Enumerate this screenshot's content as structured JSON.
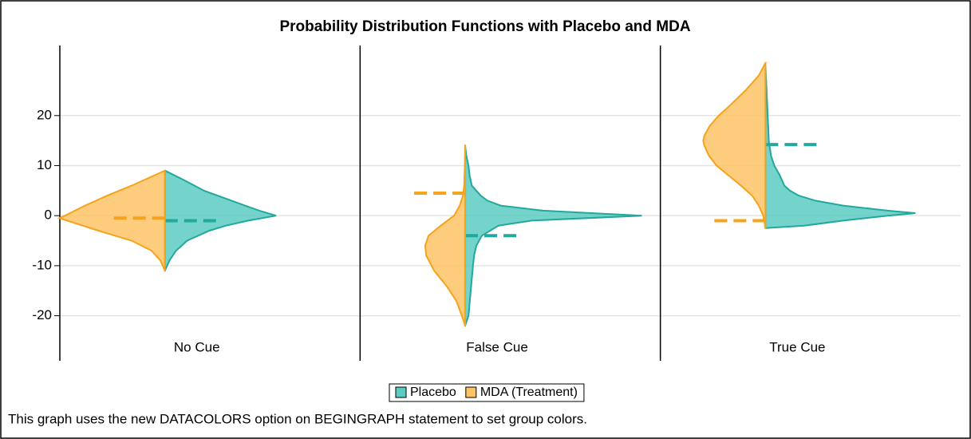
{
  "chart_data": {
    "type": "violin",
    "title": "Probability Distribution Functions with Placebo and MDA",
    "footnote": "This graph uses the new DATACOLORS option on BEGINGRAPH statement to set group colors.",
    "categories": [
      "No Cue",
      "False Cue",
      "True Cue"
    ],
    "ylim": [
      -29,
      34
    ],
    "yticks": [
      -20,
      -10,
      0,
      10,
      20
    ],
    "grid": true,
    "series": [
      {
        "name": "Placebo",
        "color": "#5ccbc1",
        "groups": [
          {
            "y": [
              -11,
              -9,
              -7,
              -5,
              -3,
              -2,
              -1,
              0,
              1,
              2,
              3,
              5,
              7,
              9
            ],
            "density": [
              0,
              0.04,
              0.1,
              0.2,
              0.4,
              0.55,
              0.75,
              1.0,
              0.85,
              0.72,
              0.6,
              0.35,
              0.18,
              0
            ],
            "mean": -1
          },
          {
            "y": [
              -22,
              -20,
              -15,
              -10,
              -8,
              -6,
              -4,
              -2,
              -1,
              0,
              1,
              2,
              3,
              4,
              6,
              8,
              10,
              12,
              14
            ],
            "density": [
              0,
              0.03,
              0.05,
              0.07,
              0.08,
              0.1,
              0.15,
              0.3,
              0.6,
              1.59,
              0.7,
              0.32,
              0.2,
              0.14,
              0.06,
              0.04,
              0.03,
              0.01,
              0
            ],
            "mean": -4
          },
          {
            "y": [
              -2.5,
              -2,
              -1,
              0,
              0.5,
              1,
              2,
              3,
              4,
              5,
              6,
              8,
              10,
              12,
              15,
              20,
              25,
              30
            ],
            "density": [
              0,
              0.35,
              0.7,
              1.1,
              1.35,
              1.1,
              0.7,
              0.45,
              0.3,
              0.22,
              0.17,
              0.13,
              0.08,
              0.05,
              0.03,
              0.02,
              0.01,
              0
            ],
            "mean": 14.2
          }
        ]
      },
      {
        "name": "MDA (Treatment)",
        "color": "#fdc365",
        "groups": [
          {
            "y": [
              -11,
              -9,
              -7,
              -5,
              -3,
              -1,
              -0.5,
              0,
              2,
              4,
              6,
              8,
              9
            ],
            "density": [
              0,
              0.04,
              0.12,
              0.3,
              0.6,
              0.88,
              0.95,
              0.9,
              0.72,
              0.52,
              0.3,
              0.1,
              0
            ],
            "mean": -0.5
          },
          {
            "y": [
              -22,
              -20,
              -17,
              -14,
              -11,
              -8,
              -6,
              -4,
              -2,
              0,
              2,
              4,
              6,
              9,
              12,
              14
            ],
            "density": [
              0,
              0.03,
              0.08,
              0.17,
              0.28,
              0.35,
              0.36,
              0.33,
              0.22,
              0.1,
              0.05,
              0.02,
              0.01,
              0.005,
              0.002,
              0
            ],
            "mean": 4.5
          },
          {
            "y": [
              -2.5,
              0,
              2,
              4,
              6,
              8,
              10,
              12,
              14,
              15,
              16,
              18,
              20,
              22,
              25,
              28,
              30.5
            ],
            "density": [
              0,
              0.02,
              0.06,
              0.12,
              0.22,
              0.33,
              0.44,
              0.51,
              0.55,
              0.56,
              0.55,
              0.5,
              0.42,
              0.32,
              0.18,
              0.06,
              0
            ],
            "mean": -1
          }
        ]
      }
    ]
  }
}
